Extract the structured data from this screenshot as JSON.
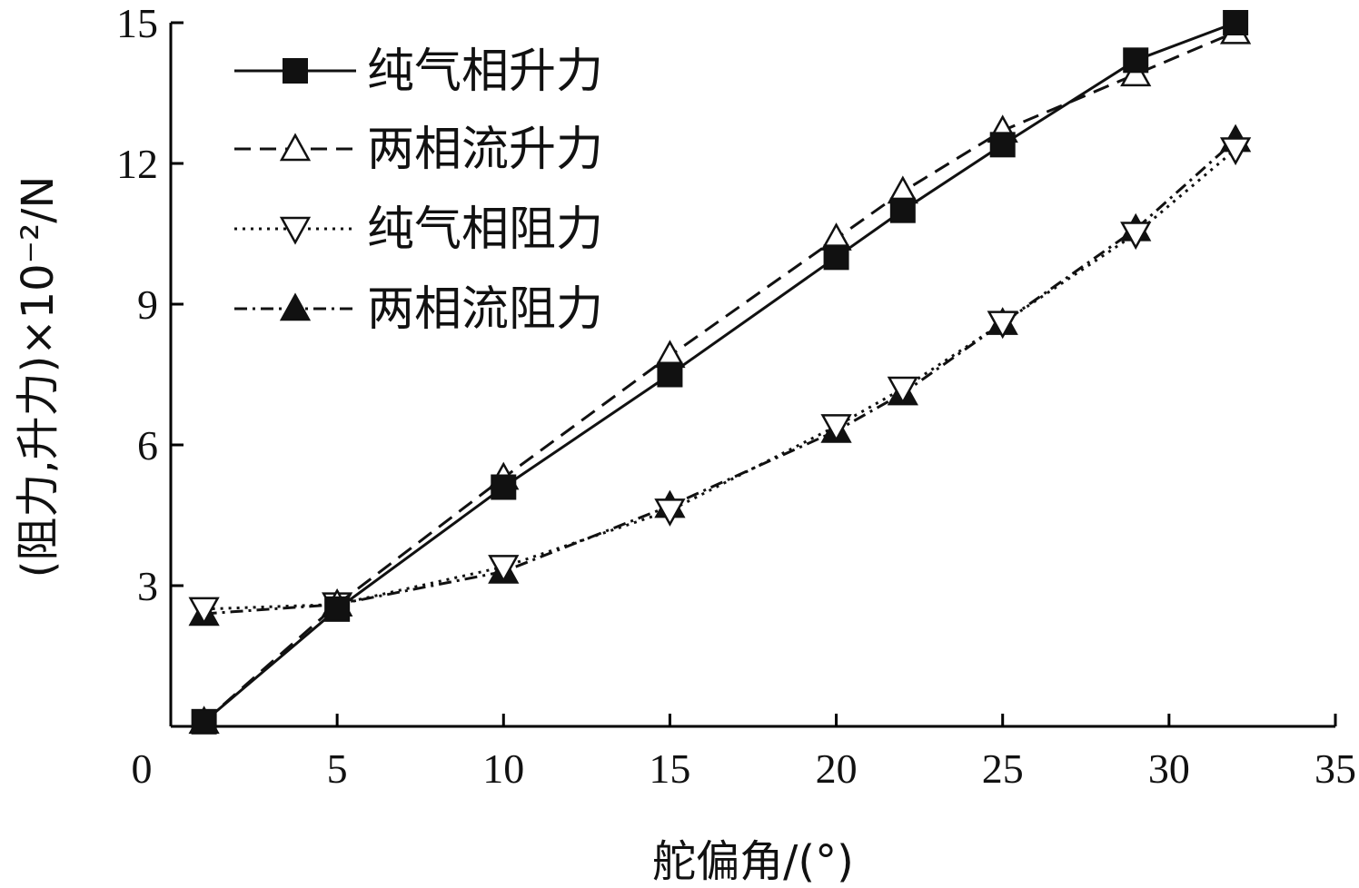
{
  "chart_data": {
    "type": "line",
    "xlabel": "舵偏角/(°)",
    "ylabel": "(阻力,升力)×10⁻²/N",
    "xlim": [
      0,
      35
    ],
    "ylim": [
      0,
      15
    ],
    "xticks": [
      0,
      5,
      10,
      15,
      20,
      25,
      30,
      35
    ],
    "yticks": [
      3,
      6,
      9,
      12,
      15
    ],
    "grid": false,
    "legend_position": "top-left",
    "x": [
      1,
      5,
      10,
      15,
      20,
      22,
      25,
      29,
      32
    ],
    "series": [
      {
        "name": "纯气相升力",
        "marker": "square-filled",
        "line_style": "solid",
        "values": [
          0.1,
          2.5,
          5.1,
          7.5,
          10.0,
          11.0,
          12.4,
          14.2,
          15.0
        ]
      },
      {
        "name": "两相流升力",
        "marker": "triangle-up-open",
        "line_style": "dashed",
        "values": [
          0.1,
          2.6,
          5.3,
          7.9,
          10.4,
          11.4,
          12.7,
          13.9,
          14.8
        ]
      },
      {
        "name": "纯气相阻力",
        "marker": "triangle-down-open",
        "line_style": "dotted",
        "values": [
          2.5,
          2.6,
          3.4,
          4.6,
          6.4,
          7.2,
          8.6,
          10.5,
          12.3
        ]
      },
      {
        "name": "两相流阻力",
        "marker": "triangle-up-filled",
        "line_style": "dash-dot",
        "values": [
          2.4,
          2.6,
          3.3,
          4.7,
          6.3,
          7.1,
          8.6,
          10.6,
          12.5
        ]
      }
    ]
  }
}
